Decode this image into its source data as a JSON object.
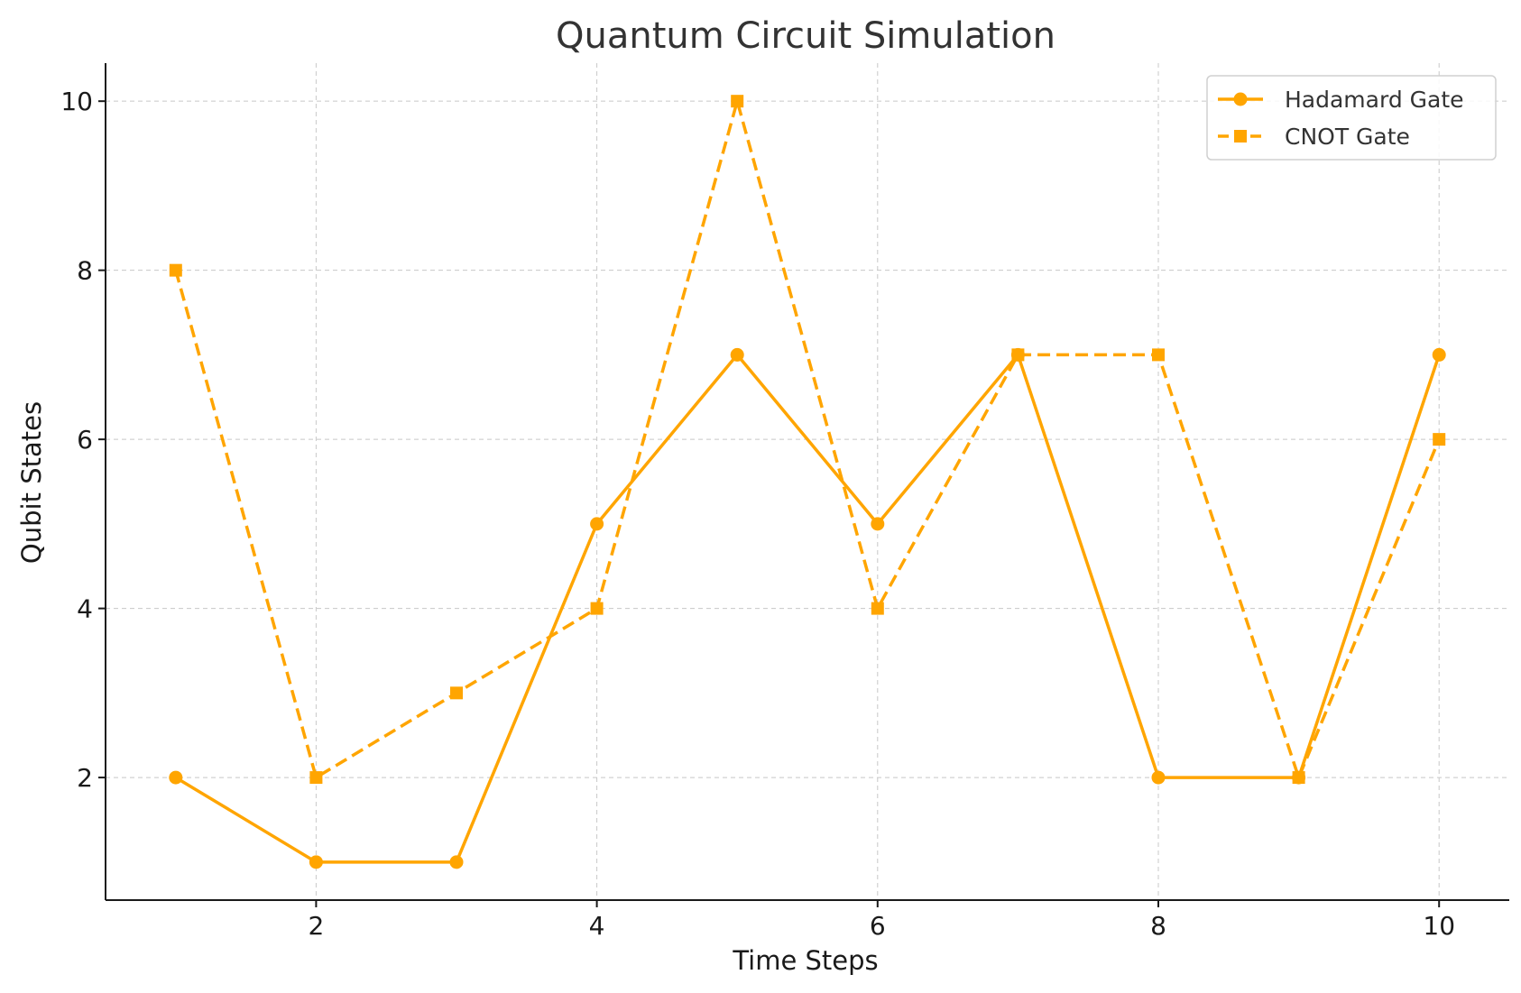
{
  "chart_data": {
    "type": "line",
    "title": "Quantum Circuit Simulation",
    "xlabel": "Time Steps",
    "ylabel": "Qubit States",
    "x": [
      1,
      2,
      3,
      4,
      5,
      6,
      7,
      8,
      9,
      10
    ],
    "xlim": [
      0.5,
      10.5
    ],
    "ylim": [
      0.55,
      10.45
    ],
    "xticks": [
      2,
      4,
      6,
      8,
      10
    ],
    "yticks": [
      2,
      4,
      6,
      8,
      10
    ],
    "grid": true,
    "legend_position": "top-right",
    "series": [
      {
        "name": "Hadamard Gate",
        "values": [
          2,
          1,
          1,
          5,
          7,
          5,
          7,
          2,
          2,
          7
        ],
        "color": "#FFA500",
        "line_style": "solid",
        "marker": "circle"
      },
      {
        "name": "CNOT Gate",
        "values": [
          8,
          2,
          3,
          4,
          10,
          4,
          7,
          7,
          2,
          6
        ],
        "color": "#FFA500",
        "line_style": "dashed",
        "marker": "square"
      }
    ]
  }
}
